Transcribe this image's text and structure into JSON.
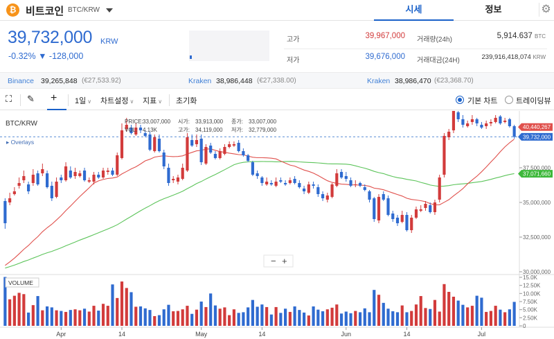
{
  "header": {
    "coin_icon": "bitcoin-icon",
    "coin_icon_glyph": "₿",
    "coin_name": "비트코인",
    "coin_pair": "BTC/KRW",
    "tabs": [
      {
        "label": "시세"
      },
      {
        "label": "정보"
      }
    ],
    "settings_icon": "gear-icon"
  },
  "price": {
    "current": "39,732,000",
    "unit": "KRW",
    "change": "-0.32% ▼ -128,000"
  },
  "stats": {
    "high_label": "고가",
    "high_value": "39,967,000",
    "low_label": "저가",
    "low_value": "39,676,000",
    "volume_label": "거래량(24h)",
    "volume_value": "5,914.637",
    "volume_unit": "BTC",
    "amount_label": "거래대금(24H)",
    "amount_value": "239,916,418,074",
    "amount_unit": "KRW"
  },
  "exchanges": [
    {
      "name": "Binance",
      "value": "39,265,848",
      "sub": "(€27,533.92)"
    },
    {
      "name": "Kraken",
      "value": "38,986,448",
      "sub": "(€27,338.00)"
    },
    {
      "name": "Kraken",
      "value": "38,986,470",
      "sub": "(€23,368.70)"
    }
  ],
  "toolbar": {
    "period": "1일",
    "chart_settings": "차트설정",
    "indicators": "지표",
    "reset": "초기화",
    "radio_basic": "기본 차트",
    "radio_tv": "트레이딩뷰"
  },
  "chart_data": {
    "type": "candlestick",
    "symbol": "BTC/KRW",
    "overlays_label": "Overlays",
    "ohlc_info": {
      "price_label": "PRICE:",
      "price": "33,007,000",
      "vol_label": "VOL:",
      "vol": "4.13K",
      "open_label": "시가:",
      "open": "33,913,000",
      "close_label": "종가:",
      "close": "33,007,000",
      "high_label": "고가:",
      "high": "34,119,000",
      "low_label": "저가:",
      "low": "32,779,000"
    },
    "y_axis": {
      "ticks": [
        30000000,
        32500000,
        35000000,
        37500000
      ],
      "tick_labels": [
        "30,000,000",
        "32,500,000",
        "35,000,000",
        "37,500,000"
      ],
      "range": [
        30000000,
        41400000
      ]
    },
    "volume_axis": {
      "ticks": [
        0,
        2500,
        5000,
        7500,
        10000,
        12500,
        15000
      ],
      "tick_labels": [
        "0",
        "2.50K",
        "5.00K",
        "7.50K",
        "10.00K",
        "12.50K",
        "15.0K"
      ],
      "range": [
        0,
        15000
      ],
      "label": "VOLUME"
    },
    "x_labels": [
      {
        "label": "Apr",
        "index": 12
      },
      {
        "label": "14",
        "index": 25
      },
      {
        "label": "May",
        "index": 42
      },
      {
        "label": "14",
        "index": 55
      },
      {
        "label": "Jun",
        "index": 73
      },
      {
        "label": "14",
        "index": 86
      },
      {
        "label": "Jul",
        "index": 102
      }
    ],
    "markers": {
      "ma_short": {
        "value": 40440267,
        "label": "40,440,267",
        "color": "#e0504c"
      },
      "current": {
        "value": 39732000,
        "label": "39,732,000",
        "color": "#2f6bd0"
      },
      "ma_long": {
        "value": 37071660,
        "label": "37,071,660",
        "color": "#3db83a"
      }
    },
    "colors": {
      "up": "#d23b3b",
      "down": "#2f6bd0",
      "ma_short": "#e0504c",
      "ma_long": "#5cc45a",
      "grid": "#f0f0f0"
    },
    "zoom_minus": "−",
    "zoom_plus": "+",
    "close": [
      33500000,
      35300000,
      35800000,
      36400000,
      36900000,
      35800000,
      37000000,
      36300000,
      37400000,
      36100000,
      35300000,
      36500000,
      36600000,
      37600000,
      36800000,
      37200000,
      37100000,
      36600000,
      36600000,
      37000000,
      36800000,
      37300000,
      37300000,
      37000000,
      38400000,
      40200000,
      40600000,
      40000000,
      40400000,
      40200000,
      39800000,
      38800000,
      39700000,
      38700000,
      37600000,
      36400000,
      36700000,
      36800000,
      37500000,
      39700000,
      39100000,
      39500000,
      37900000,
      39000000,
      38600000,
      38200000,
      38700000,
      39000000,
      39200000,
      39200000,
      38700000,
      38400000,
      38000000,
      37000000,
      36900000,
      36400000,
      36500000,
      36300000,
      36500000,
      36500000,
      36300000,
      36600000,
      36400000,
      36100000,
      35800000,
      36300000,
      36200000,
      35600000,
      35300000,
      35500000,
      36300000,
      37100000,
      36800000,
      36700000,
      36200000,
      36300000,
      36200000,
      35900000,
      35200000,
      33800000,
      35400000,
      35200000,
      34100000,
      33800000,
      33500000,
      34100000,
      33000000,
      33900000,
      34500000,
      34500000,
      34900000,
      34300000,
      35000000,
      36800000,
      39800000,
      40100000,
      41600000,
      41000000,
      40600000,
      40700000,
      41000000,
      40700000,
      40400000,
      40700000,
      40800000,
      41100000,
      40700000,
      40900000,
      40500000,
      39732000
    ],
    "open": [
      35100000,
      35000000,
      35600000,
      36200000,
      36600000,
      36300000,
      36400000,
      37100000,
      37100000,
      37100000,
      36200000,
      35400000,
      36800000,
      36600000,
      37300000,
      36900000,
      36900000,
      37300000,
      36500000,
      36500000,
      37000000,
      36800000,
      37200000,
      37300000,
      37000000,
      38200000,
      40300000,
      40400000,
      39900000,
      40400000,
      40000000,
      39900000,
      38700000,
      39600000,
      38600000,
      37500000,
      36600000,
      36500000,
      36700000,
      37300000,
      39500000,
      39200000,
      39600000,
      37800000,
      39100000,
      38500000,
      38200000,
      38500000,
      39000000,
      39100000,
      39300000,
      38700000,
      38400000,
      37900000,
      37100000,
      36800000,
      36300000,
      36400000,
      36200000,
      36600000,
      36400000,
      36400000,
      36700000,
      36400000,
      36000000,
      35700000,
      36300000,
      36100000,
      35600000,
      35200000,
      35400000,
      36200000,
      37200000,
      36900000,
      36600000,
      36300000,
      36400000,
      36100000,
      35800000,
      35300000,
      33700000,
      35600000,
      35300000,
      34200000,
      33900000,
      33600000,
      34100000,
      33000000,
      33900000,
      34400000,
      34600000,
      34800000,
      34300000,
      35200000,
      37000000,
      39700000,
      40200000,
      41500000,
      41000000,
      40500000,
      40800000,
      41000000,
      40600000,
      40500000,
      40700000,
      40800000,
      41200000,
      40800000,
      41000000,
      40500000
    ],
    "high": [
      35300000,
      35700000,
      36100000,
      36800000,
      37300000,
      36500000,
      37400000,
      37300000,
      37800000,
      37300000,
      36500000,
      36800000,
      37000000,
      37900000,
      37600000,
      37500000,
      37300000,
      37500000,
      36800000,
      37200000,
      37200000,
      37500000,
      37500000,
      37500000,
      38600000,
      40700000,
      41100000,
      40600000,
      40700000,
      40600000,
      40200000,
      40100000,
      39900000,
      39900000,
      38800000,
      37800000,
      36900000,
      37000000,
      37800000,
      40000000,
      39900000,
      39900000,
      39900000,
      39200000,
      39300000,
      38700000,
      38900000,
      39200000,
      39400000,
      39400000,
      39500000,
      38900000,
      38500000,
      38000000,
      37300000,
      36900000,
      36800000,
      36600000,
      36800000,
      36800000,
      36600000,
      36800000,
      36900000,
      36600000,
      36200000,
      36500000,
      36500000,
      36300000,
      35800000,
      35700000,
      36400000,
      37400000,
      37400000,
      37200000,
      36800000,
      36600000,
      36500000,
      36300000,
      35900000,
      35400000,
      35600000,
      35800000,
      35500000,
      34400000,
      34100000,
      34400000,
      34300000,
      34100000,
      34700000,
      34800000,
      35100000,
      35000000,
      35200000,
      37000000,
      40000000,
      40300000,
      41800000,
      41700000,
      41300000,
      40900000,
      41300000,
      41100000,
      40800000,
      40900000,
      41000000,
      41300000,
      41300000,
      41100000,
      41100000,
      40600000
    ],
    "low": [
      33100000,
      34800000,
      35500000,
      36000000,
      36400000,
      35600000,
      36200000,
      36200000,
      36900000,
      36000000,
      35100000,
      35300000,
      36400000,
      36500000,
      36700000,
      36700000,
      36800000,
      36500000,
      36400000,
      36300000,
      36700000,
      36700000,
      37000000,
      36900000,
      36900000,
      38100000,
      40100000,
      39900000,
      39800000,
      40000000,
      39700000,
      38700000,
      38600000,
      38600000,
      37400000,
      36200000,
      36400000,
      36300000,
      36600000,
      37200000,
      39000000,
      39000000,
      37700000,
      37700000,
      38500000,
      38100000,
      38100000,
      38400000,
      38900000,
      39000000,
      38600000,
      38300000,
      37900000,
      36900000,
      36700000,
      36200000,
      36200000,
      36200000,
      36100000,
      36400000,
      36200000,
      36300000,
      36300000,
      36000000,
      35600000,
      35600000,
      36000000,
      35400000,
      35100000,
      35000000,
      35300000,
      36100000,
      36700000,
      36500000,
      36100000,
      36100000,
      36100000,
      35800000,
      35000000,
      33600000,
      33500000,
      35100000,
      34000000,
      33600000,
      33300000,
      33500000,
      32900000,
      32800000,
      33800000,
      34300000,
      34400000,
      34200000,
      34100000,
      35000000,
      36800000,
      39500000,
      40000000,
      40800000,
      40400000,
      40400000,
      40600000,
      40500000,
      40300000,
      40300000,
      40500000,
      40700000,
      40600000,
      40700000,
      40400000,
      39600000
    ],
    "volume": [
      15100,
      8200,
      9300,
      10200,
      9800,
      4100,
      6400,
      9200,
      4800,
      6000,
      5700,
      4800,
      4600,
      4300,
      4900,
      5100,
      4800,
      5300,
      4400,
      6200,
      4700,
      6800,
      6200,
      12800,
      8600,
      13700,
      11700,
      10400,
      5900,
      6000,
      5400,
      4900,
      3000,
      3300,
      5100,
      6500,
      4500,
      4600,
      5100,
      6200,
      3700,
      5000,
      7500,
      5800,
      10000,
      6300,
      5300,
      5700,
      3300,
      5100,
      4000,
      4200,
      5700,
      8000,
      5900,
      6600,
      5800,
      3500,
      5800,
      4000,
      5300,
      4300,
      6000,
      4900,
      4100,
      3200,
      6000,
      5000,
      4500,
      5100,
      5600,
      6600,
      3800,
      4400,
      3900,
      4600,
      4200,
      5400,
      4200,
      11100,
      9600,
      7100,
      5300,
      4500,
      4200,
      6300,
      4200,
      4600,
      6600,
      9200,
      5500,
      5200,
      8000,
      4400,
      12900,
      10500,
      9000,
      7800,
      6500,
      5700,
      6200,
      9300,
      8700,
      4300,
      4600,
      6200,
      5000,
      4200,
      5100,
      7400
    ]
  }
}
